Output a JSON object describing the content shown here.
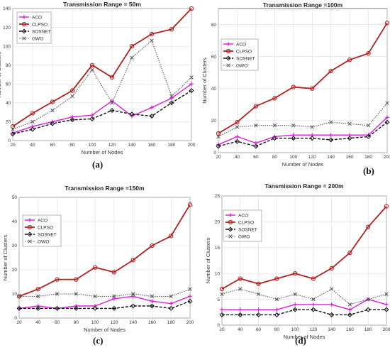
{
  "colors": {
    "ACO": "#d81ed8",
    "CLPSO": "#b3201f",
    "SOSNET": "#111111",
    "GWO": "#555555"
  },
  "chart_data": [
    {
      "type": "line",
      "title": "Transmission Range = 50m",
      "xlabel": "Number of Nodes",
      "ylabel": "Number of Clusters",
      "x": [
        20,
        40,
        60,
        80,
        100,
        120,
        140,
        160,
        180,
        200
      ],
      "xlim": [
        20,
        200
      ],
      "ylim": [
        0,
        140
      ],
      "yticks": [
        0,
        20,
        40,
        60,
        80,
        100,
        120,
        140
      ],
      "grid": true,
      "legend": "top-left",
      "caption": "(a)",
      "series": [
        {
          "name": "ACO",
          "values": [
            8,
            15,
            20,
            25,
            27,
            42,
            26,
            35,
            45,
            60
          ]
        },
        {
          "name": "CLPSO",
          "values": [
            15,
            29,
            41,
            53,
            80,
            67,
            100,
            113,
            118,
            140
          ]
        },
        {
          "name": "SOSNET",
          "values": [
            7,
            12,
            18,
            22,
            23,
            32,
            28,
            26,
            40,
            53
          ]
        },
        {
          "name": "GWO",
          "values": [
            12,
            20,
            32,
            47,
            75,
            40,
            88,
            106,
            47,
            67
          ]
        }
      ]
    },
    {
      "type": "line",
      "title": "Transmission Range =100m",
      "xlabel": "Number of Nodes",
      "ylabel": "Number of Clusters",
      "x": [
        20,
        40,
        60,
        80,
        100,
        120,
        140,
        160,
        180,
        200
      ],
      "xlim": [
        20,
        200
      ],
      "ylim": [
        0,
        90
      ],
      "yticks": [
        0,
        20,
        40,
        60,
        80
      ],
      "grid": true,
      "legend": "top-left",
      "caption": "(b)",
      "series": [
        {
          "name": "ACO",
          "values": [
            5,
            10,
            6,
            10,
            11,
            11,
            11,
            11,
            11,
            22
          ]
        },
        {
          "name": "CLPSO",
          "values": [
            12,
            19,
            29,
            34,
            41,
            40,
            51,
            58,
            62,
            81
          ]
        },
        {
          "name": "SOSNET",
          "values": [
            4,
            7,
            4,
            9,
            9,
            9,
            8,
            9,
            10,
            19
          ]
        },
        {
          "name": "GWO",
          "values": [
            10,
            16,
            17,
            17,
            17,
            16,
            19,
            18,
            17,
            31
          ]
        }
      ]
    },
    {
      "type": "line",
      "title": "Transmission Range =150m",
      "xlabel": "Number of Nodes",
      "ylabel": "Number of Clusters",
      "x": [
        20,
        40,
        60,
        80,
        100,
        120,
        140,
        160,
        180,
        200
      ],
      "xlim": [
        20,
        200
      ],
      "ylim": [
        0,
        50
      ],
      "yticks": [
        0,
        10,
        20,
        30,
        40,
        50
      ],
      "grid": true,
      "legend": "top-left",
      "caption": "(c)",
      "series": [
        {
          "name": "ACO",
          "values": [
            4,
            5,
            4,
            5,
            5,
            8,
            9,
            7,
            6,
            9
          ]
        },
        {
          "name": "CLPSO",
          "values": [
            9,
            12,
            16,
            16,
            21,
            19,
            24,
            30,
            34,
            47
          ]
        },
        {
          "name": "SOSNET",
          "values": [
            4,
            4,
            4,
            4,
            4,
            4,
            5,
            5,
            4,
            7
          ]
        },
        {
          "name": "GWO",
          "values": [
            9,
            9,
            10,
            10,
            9,
            9,
            10,
            9,
            9,
            12
          ]
        }
      ]
    },
    {
      "type": "line",
      "title": "Tansmission Range = 200m",
      "xlabel": "Number of Nodes",
      "ylabel": "Number of Clusters",
      "x": [
        20,
        40,
        60,
        80,
        100,
        120,
        140,
        160,
        180,
        200
      ],
      "xlim": [
        20,
        200
      ],
      "ylim": [
        0,
        25
      ],
      "yticks": [
        0,
        5,
        10,
        15,
        20,
        25
      ],
      "grid": true,
      "legend": "top-left",
      "caption": "(d)",
      "series": [
        {
          "name": "ACO",
          "values": [
            3,
            3,
            3,
            3,
            4,
            4,
            4,
            3,
            5,
            4
          ]
        },
        {
          "name": "CLPSO",
          "values": [
            7,
            9,
            8,
            9,
            10,
            9,
            11,
            14,
            19,
            23
          ]
        },
        {
          "name": "SOSNET",
          "values": [
            2,
            2,
            2,
            2,
            3,
            3,
            2,
            2,
            3,
            3
          ]
        },
        {
          "name": "GWO",
          "values": [
            6,
            7,
            6,
            5,
            6,
            5,
            7,
            4,
            5,
            6
          ]
        }
      ]
    }
  ]
}
